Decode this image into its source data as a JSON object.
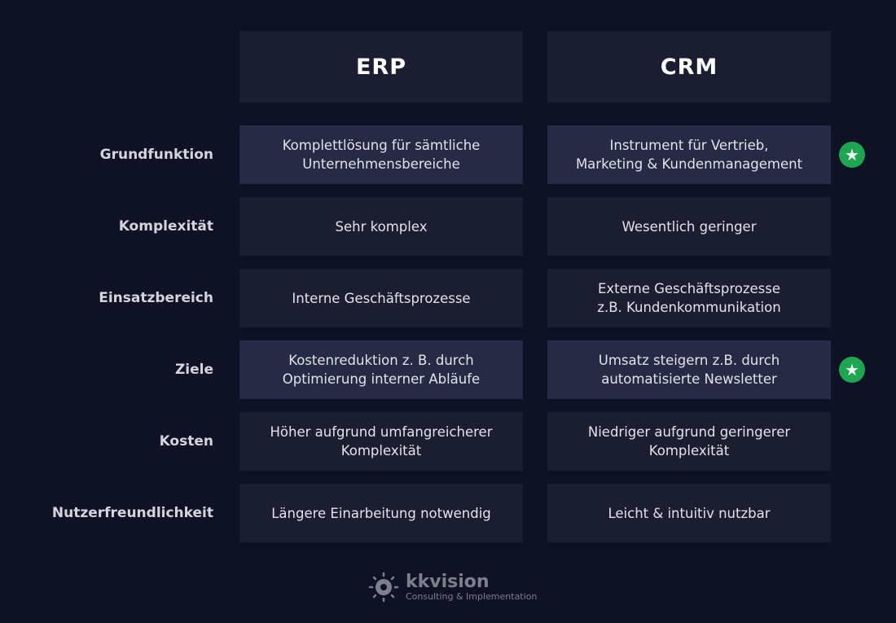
{
  "columns": [
    "ERP",
    "CRM"
  ],
  "rows": [
    {
      "label": "Grundfunktion",
      "erp": "Komplettlösung für sämtliche\nUnternehmensbereiche",
      "crm": "Instrument für Vertrieb,\nMarketing & Kundenmanagement",
      "highlight": true,
      "star": true
    },
    {
      "label": "Komplexität",
      "erp": "Sehr komplex",
      "crm": "Wesentlich geringer",
      "highlight": false,
      "star": false
    },
    {
      "label": "Einsatzbereich",
      "erp": "Interne Geschäftsprozesse",
      "crm": "Externe Geschäftsprozesse\nz.B. Kundenkommunikation",
      "highlight": false,
      "star": false
    },
    {
      "label": "Ziele",
      "erp": "Kostenreduktion z. B. durch\nOptimierung interner Abläufe",
      "crm": "Umsatz steigern z.B. durch\nautomatisierte Newsletter",
      "highlight": true,
      "star": true
    },
    {
      "label": "Kosten",
      "erp": "Höher aufgrund umfangreicherer\nKomplexität",
      "crm": "Niedriger aufgrund geringerer\nKomplexität",
      "highlight": false,
      "star": false
    },
    {
      "label": "Nutzerfreundlichkeit",
      "erp": "Längere Einarbeitung notwendig",
      "crm": "Leicht & intuitiv nutzbar",
      "highlight": false,
      "star": false
    }
  ],
  "icons": {
    "star": "star-icon",
    "logo": "gear-icon"
  },
  "colors": {
    "background": "#0f1224",
    "cell": "#1b1e30",
    "highlight_cell": "#262a45",
    "star": "#1fa653"
  },
  "logo": {
    "name": "kkvision",
    "tagline": "Consulting & Implementation"
  }
}
